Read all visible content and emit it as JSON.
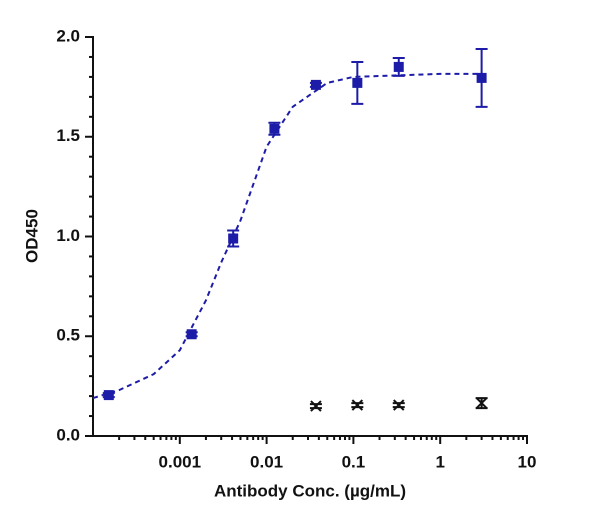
{
  "chart_data": {
    "type": "scatter",
    "xlabel": "Antibody Conc. (µg/mL)",
    "ylabel": "OD450",
    "xscale": "log",
    "xlim": [
      0.0001,
      10
    ],
    "ylim": [
      0,
      2
    ],
    "xticks": [
      0.001,
      0.01,
      0.1,
      1,
      10
    ],
    "yticks": [
      {
        "value": 0,
        "label": "0.0"
      },
      {
        "value": 0.5,
        "label": "0.5"
      },
      {
        "value": 1,
        "label": "1.0"
      },
      {
        "value": 1.5,
        "label": "1.5"
      },
      {
        "value": 2,
        "label": "2.0"
      }
    ],
    "series": [
      {
        "color": "#1c1ca8",
        "marker": "square",
        "x": [
          0.000152,
          0.00137,
          0.00412,
          0.0123,
          0.037,
          0.111,
          0.333,
          3
        ],
        "values": [
          0.205,
          0.51,
          0.99,
          1.54,
          1.76,
          1.77,
          1.85,
          1.795
        ],
        "errors": [
          0.01,
          0.01,
          0.04,
          0.03,
          0.01,
          0.105,
          0.045,
          0.145
        ]
      },
      {
        "color": "#111111",
        "marker": "x",
        "x": [
          0.037,
          0.111,
          0.333,
          3
        ],
        "values": [
          0.15,
          0.155,
          0.155,
          0.165
        ],
        "errors": [
          0.01,
          0.01,
          0.01,
          0.025
        ]
      },
      {
        "color": "#1c1ca8",
        "line": "dashed",
        "x": [
          0.0001,
          0.0002,
          0.0005,
          0.001,
          0.002,
          0.003,
          0.005,
          0.01,
          0.02,
          0.05,
          0.1,
          1,
          3
        ],
        "values": [
          0.19,
          0.23,
          0.31,
          0.43,
          0.68,
          0.87,
          1.08,
          1.45,
          1.65,
          1.77,
          1.8,
          1.815,
          1.815
        ]
      }
    ]
  }
}
